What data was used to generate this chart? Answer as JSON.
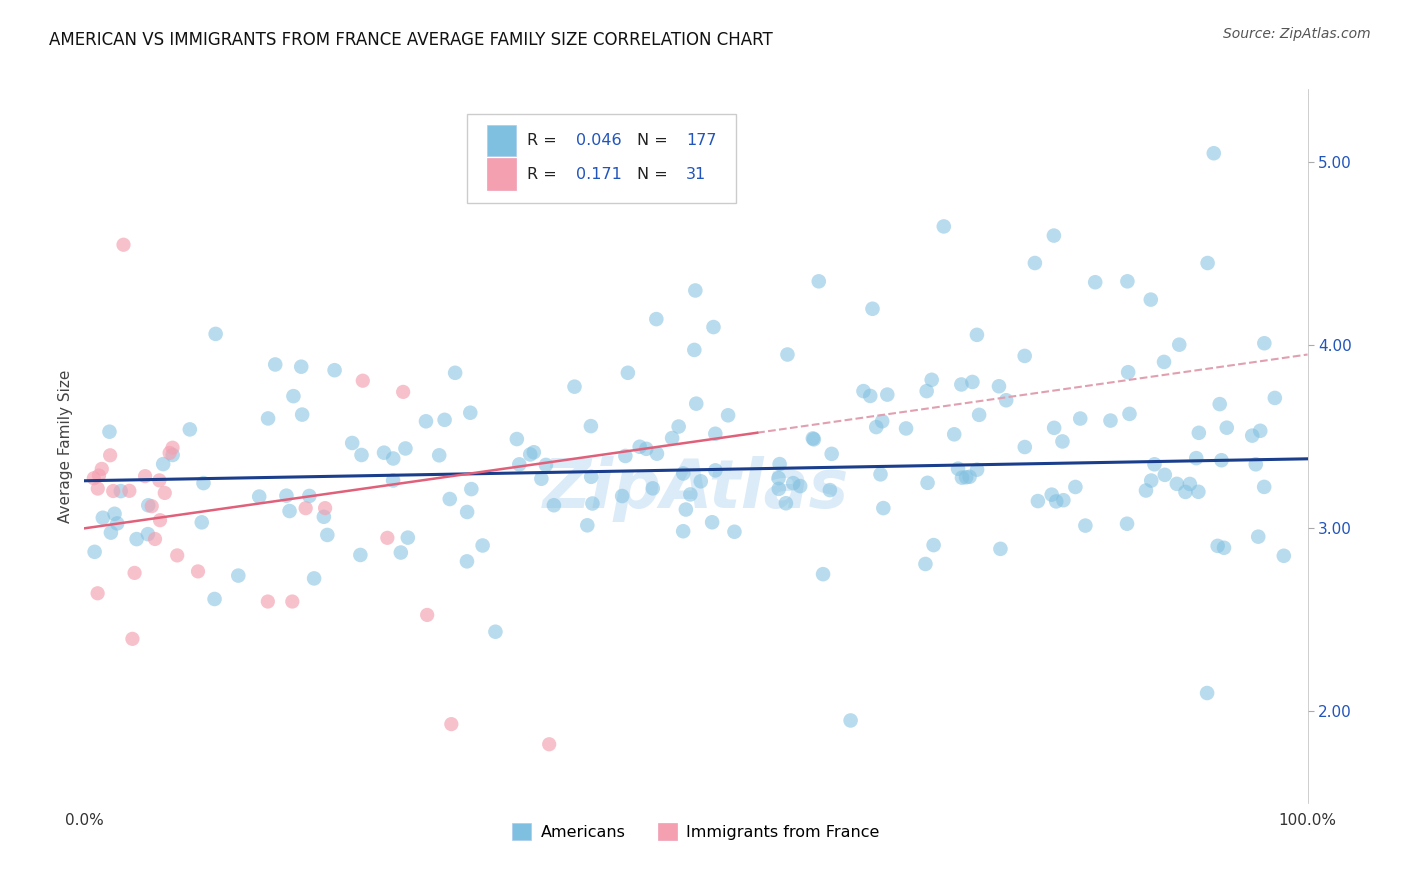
{
  "title": "AMERICAN VS IMMIGRANTS FROM FRANCE AVERAGE FAMILY SIZE CORRELATION CHART",
  "source": "Source: ZipAtlas.com",
  "ylabel": "Average Family Size",
  "yticks": [
    2.0,
    3.0,
    4.0,
    5.0
  ],
  "title_fontsize": 12,
  "source_fontsize": 10,
  "blue_color": "#7fbfdf",
  "pink_color": "#f4a0b0",
  "blue_line_color": "#1a3e8c",
  "pink_line_color": "#e0607a",
  "pink_dash_color": "#e0a0b0",
  "watermark_color": "#b8d8f0",
  "background_color": "#ffffff",
  "grid_color": "#cccccc",
  "xlim": [
    0,
    100
  ],
  "ylim": [
    1.5,
    5.4
  ],
  "legend_blue_r": "0.046",
  "legend_blue_n": "177",
  "legend_pink_r": "0.171",
  "legend_pink_n": "31",
  "blue_seed": 12345,
  "pink_seed": 9876
}
